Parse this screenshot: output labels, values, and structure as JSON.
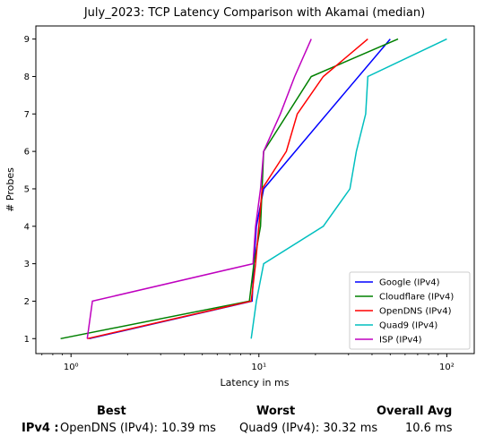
{
  "chart_data": {
    "type": "line",
    "title": "July_2023: TCP Latency Comparison with Akamai (median)",
    "xlabel": "Latency in ms",
    "ylabel": "# Probes",
    "xscale": "log",
    "xlim": [
      0.65,
      140
    ],
    "ylim": [
      0.6,
      9.35
    ],
    "x_ticks": [
      1,
      10,
      100
    ],
    "x_tick_labels": [
      "10⁰",
      "10¹",
      "10²"
    ],
    "y_ticks": [
      1,
      2,
      3,
      4,
      5,
      6,
      7,
      8,
      9
    ],
    "y_tick_labels": [
      "1",
      "2",
      "3",
      "4",
      "5",
      "6",
      "7",
      "8",
      "9"
    ],
    "grid": false,
    "legend_position": "lower-right",
    "series": [
      {
        "name": "Google (IPv4)",
        "color": "#0000ff",
        "x": [
          1.25,
          9.2,
          9.4,
          9.7,
          10.6,
          23,
          50
        ],
        "y": [
          1,
          2,
          3,
          4,
          5,
          7,
          9
        ]
      },
      {
        "name": "Cloudflare (IPv4)",
        "color": "#008000",
        "x": [
          0.88,
          8.9,
          9.4,
          10.2,
          10.6,
          19,
          55
        ],
        "y": [
          1,
          2,
          3,
          4,
          6,
          8,
          9
        ]
      },
      {
        "name": "OpenDNS (IPv4)",
        "color": "#ff0000",
        "x": [
          1.22,
          9.1,
          9.6,
          10.4,
          14,
          16,
          22,
          38
        ],
        "y": [
          1,
          2,
          3,
          5,
          6,
          7,
          8,
          9
        ]
      },
      {
        "name": "Quad9 (IPv4)",
        "color": "#00bfbf",
        "x": [
          9.1,
          9.7,
          10.6,
          22,
          30.5,
          33,
          37,
          38,
          100
        ],
        "y": [
          1,
          2,
          3,
          4,
          5,
          6,
          7,
          8,
          9
        ]
      },
      {
        "name": "ISP (IPv4)",
        "color": "#bf00bf",
        "x": [
          1.22,
          1.3,
          9.3,
          9.6,
          10.2,
          10.6,
          13,
          15.5,
          19
        ],
        "y": [
          1,
          2,
          3,
          4,
          5,
          6,
          7,
          8,
          9
        ]
      }
    ]
  },
  "summary": {
    "best_header": "Best",
    "worst_header": "Worst",
    "avg_header": "Overall Avg",
    "row_label": "IPv4 :",
    "best_value": "OpenDNS (IPv4): 10.39 ms",
    "worst_value": "Quad9 (IPv4): 30.32 ms",
    "avg_value": "10.6 ms"
  }
}
